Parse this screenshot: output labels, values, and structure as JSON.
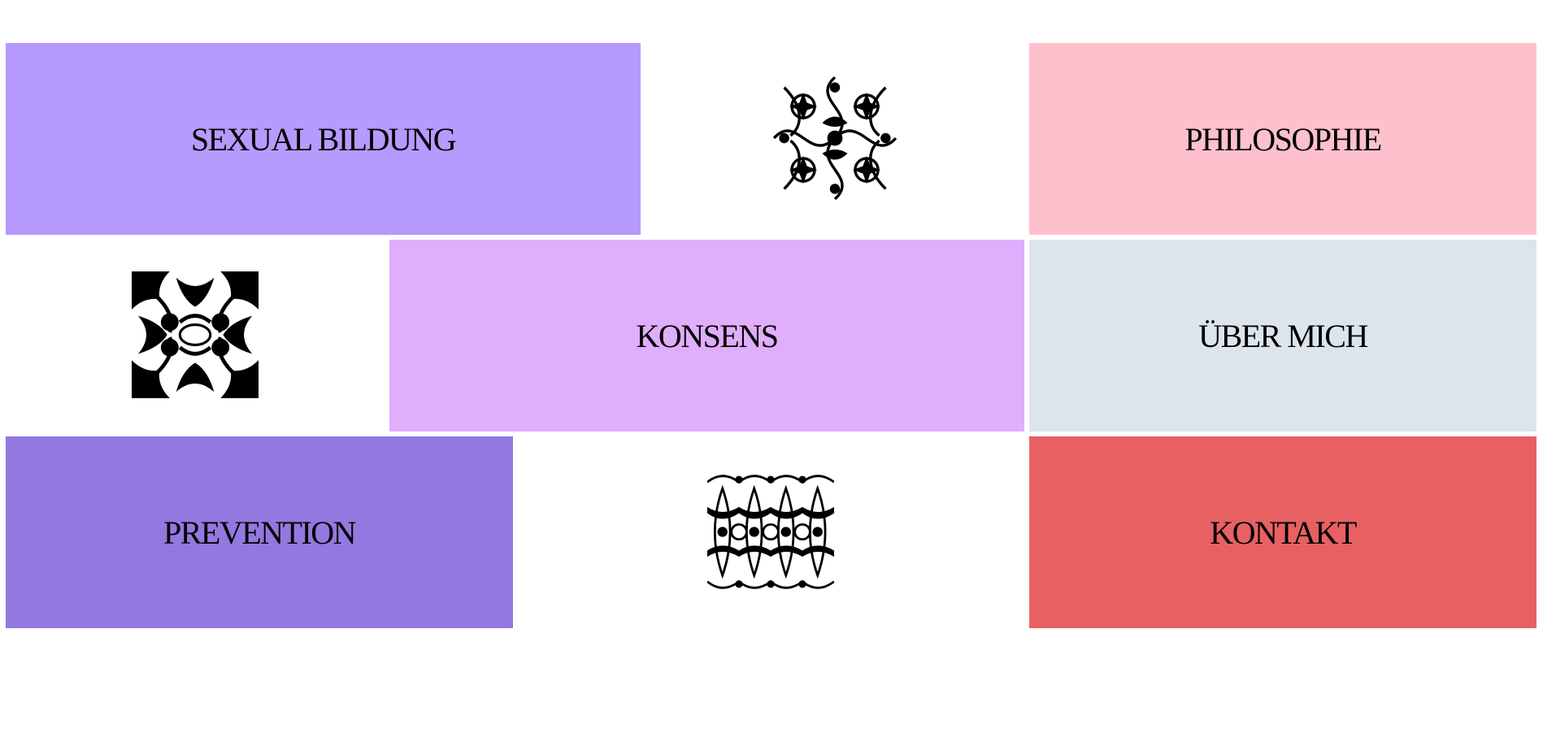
{
  "nav": {
    "tiles": [
      {
        "id": "sexual-bildung",
        "label": "SEXUAL BILDUNG",
        "color": "#b69afd"
      },
      {
        "id": "philosophie",
        "label": "PHILOSOPHIE",
        "color": "#fec0cc"
      },
      {
        "id": "konsens",
        "label": "KONSENS",
        "color": "#dfaefd"
      },
      {
        "id": "ueber-mich",
        "label": "ÜBER MICH",
        "color": "#dce4ec"
      },
      {
        "id": "prevention",
        "label": "PREVENTION",
        "color": "#9378df"
      },
      {
        "id": "kontakt",
        "label": "KONTAKT",
        "color": "#e76163"
      }
    ]
  },
  "ornaments": [
    {
      "icon": "floral-ornament-icon"
    },
    {
      "icon": "baroque-ornament-icon"
    },
    {
      "icon": "lace-ornament-icon"
    }
  ]
}
